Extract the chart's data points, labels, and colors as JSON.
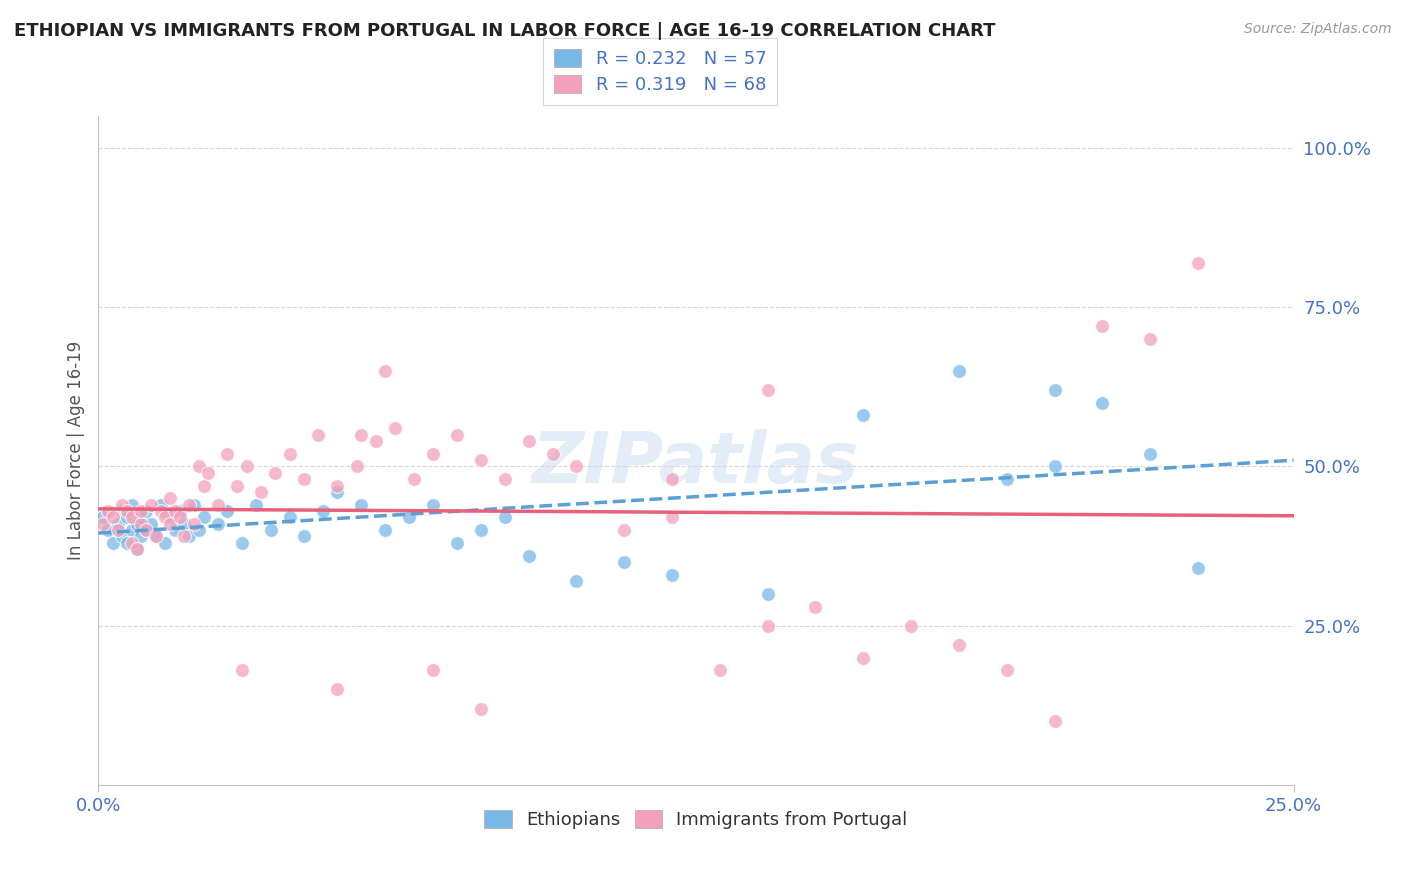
{
  "title": "ETHIOPIAN VS IMMIGRANTS FROM PORTUGAL IN LABOR FORCE | AGE 16-19 CORRELATION CHART",
  "source": "Source: ZipAtlas.com",
  "ylabel": "In Labor Force | Age 16-19",
  "xlim": [
    0.0,
    0.25
  ],
  "ylim": [
    0.0,
    1.05
  ],
  "ytick_vals": [
    0.25,
    0.5,
    0.75,
    1.0
  ],
  "ytick_labels": [
    "25.0%",
    "50.0%",
    "75.0%",
    "100.0%"
  ],
  "xtick_vals": [
    0.0,
    0.25
  ],
  "xtick_labels": [
    "0.0%",
    "25.0%"
  ],
  "background_color": "#ffffff",
  "ethiopian_color": "#7ab8e8",
  "portugal_color": "#f4a0ba",
  "trend_ethiopian_color": "#5b9fd4",
  "trend_portugal_color": "#e8607a",
  "R_ethiopian": 0.232,
  "N_ethiopian": 57,
  "R_portugal": 0.319,
  "N_portugal": 68,
  "eth_x": [
    0.001,
    0.002,
    0.003,
    0.004,
    0.005,
    0.005,
    0.006,
    0.006,
    0.007,
    0.007,
    0.008,
    0.008,
    0.009,
    0.009,
    0.01,
    0.01,
    0.011,
    0.012,
    0.013,
    0.014,
    0.015,
    0.016,
    0.017,
    0.018,
    0.019,
    0.02,
    0.021,
    0.022,
    0.025,
    0.027,
    0.03,
    0.033,
    0.036,
    0.04,
    0.043,
    0.047,
    0.05,
    0.055,
    0.06,
    0.065,
    0.07,
    0.075,
    0.08,
    0.085,
    0.09,
    0.1,
    0.11,
    0.12,
    0.14,
    0.16,
    0.18,
    0.2,
    0.22,
    0.2,
    0.19,
    0.21,
    0.23
  ],
  "eth_y": [
    0.42,
    0.4,
    0.38,
    0.41,
    0.43,
    0.39,
    0.42,
    0.38,
    0.44,
    0.4,
    0.41,
    0.37,
    0.42,
    0.39,
    0.43,
    0.4,
    0.41,
    0.39,
    0.44,
    0.38,
    0.42,
    0.4,
    0.43,
    0.41,
    0.39,
    0.44,
    0.4,
    0.42,
    0.41,
    0.43,
    0.38,
    0.44,
    0.4,
    0.42,
    0.39,
    0.43,
    0.46,
    0.44,
    0.4,
    0.42,
    0.44,
    0.38,
    0.4,
    0.42,
    0.36,
    0.32,
    0.35,
    0.33,
    0.3,
    0.58,
    0.65,
    0.5,
    0.52,
    0.62,
    0.48,
    0.6,
    0.34
  ],
  "port_x": [
    0.001,
    0.002,
    0.003,
    0.004,
    0.005,
    0.006,
    0.007,
    0.007,
    0.008,
    0.009,
    0.009,
    0.01,
    0.011,
    0.012,
    0.013,
    0.014,
    0.015,
    0.015,
    0.016,
    0.017,
    0.018,
    0.019,
    0.02,
    0.021,
    0.022,
    0.023,
    0.025,
    0.027,
    0.029,
    0.031,
    0.034,
    0.037,
    0.04,
    0.043,
    0.046,
    0.05,
    0.054,
    0.058,
    0.062,
    0.066,
    0.07,
    0.075,
    0.08,
    0.085,
    0.09,
    0.095,
    0.1,
    0.11,
    0.12,
    0.13,
    0.14,
    0.15,
    0.16,
    0.17,
    0.18,
    0.19,
    0.2,
    0.21,
    0.22,
    0.23,
    0.06,
    0.05,
    0.14,
    0.03,
    0.08,
    0.055,
    0.12,
    0.07
  ],
  "port_y": [
    0.41,
    0.43,
    0.42,
    0.4,
    0.44,
    0.43,
    0.38,
    0.42,
    0.37,
    0.41,
    0.43,
    0.4,
    0.44,
    0.39,
    0.43,
    0.42,
    0.41,
    0.45,
    0.43,
    0.42,
    0.39,
    0.44,
    0.41,
    0.5,
    0.47,
    0.49,
    0.44,
    0.52,
    0.47,
    0.5,
    0.46,
    0.49,
    0.52,
    0.48,
    0.55,
    0.47,
    0.5,
    0.54,
    0.56,
    0.48,
    0.52,
    0.55,
    0.51,
    0.48,
    0.54,
    0.52,
    0.5,
    0.4,
    0.48,
    0.18,
    0.25,
    0.28,
    0.2,
    0.25,
    0.22,
    0.18,
    0.1,
    0.72,
    0.7,
    0.82,
    0.65,
    0.15,
    0.62,
    0.18,
    0.12,
    0.55,
    0.42,
    0.18
  ],
  "legend_text_color": "#4472c4",
  "tick_color": "#4472c4",
  "grid_color": "#d8d8d8",
  "watermark_text": "ZIPatlas",
  "legend1_labels": [
    "R = 0.232   N = 57",
    "R = 0.319   N = 68"
  ],
  "bottom_legend_labels": [
    "Ethiopians",
    "Immigrants from Portugal"
  ]
}
